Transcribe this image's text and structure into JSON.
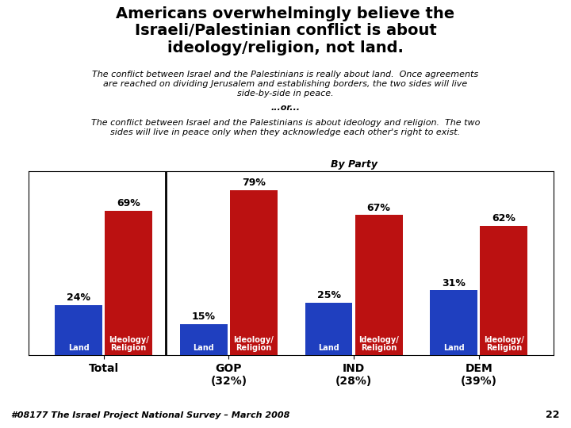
{
  "chart_data": {
    "type": "bar",
    "title": "Americans overwhelmingly believe the\nIsraeli/Palestinian conflict is about\nideology/religion, not land.",
    "subtitle": "The conflict between Israel and the Palestinians is really about land.  Once agreements\nare reached on dividing Jerusalem and establishing borders, the two sides will live\nside-by-side in peace.",
    "annotations": [
      "...or...",
      "The conflict between Israel and the Palestinians is about ideology and religion.  The two\nsides will live in peace only when they acknowledge each other's right to exist.",
      "By Party",
      "#08177 The Israel Project National Survey – March 2008",
      "22"
    ],
    "categories": [
      "Total",
      "GOP\n(32%)",
      "IND\n(28%)",
      "DEM\n(39%)"
    ],
    "series": [
      {
        "name": "Land",
        "color": "#1F3FBF",
        "values": [
          24,
          15,
          25,
          31
        ],
        "value_labels": [
          "24%",
          "15%",
          "25%",
          "31%"
        ]
      },
      {
        "name": "Ideology/\nReligion",
        "color": "#BB1111",
        "values": [
          69,
          79,
          67,
          62
        ],
        "value_labels": [
          "69%",
          "79%",
          "67%",
          "62%"
        ]
      }
    ],
    "ylim": [
      0,
      88
    ],
    "data_labels": true,
    "tick_labels": "x"
  }
}
